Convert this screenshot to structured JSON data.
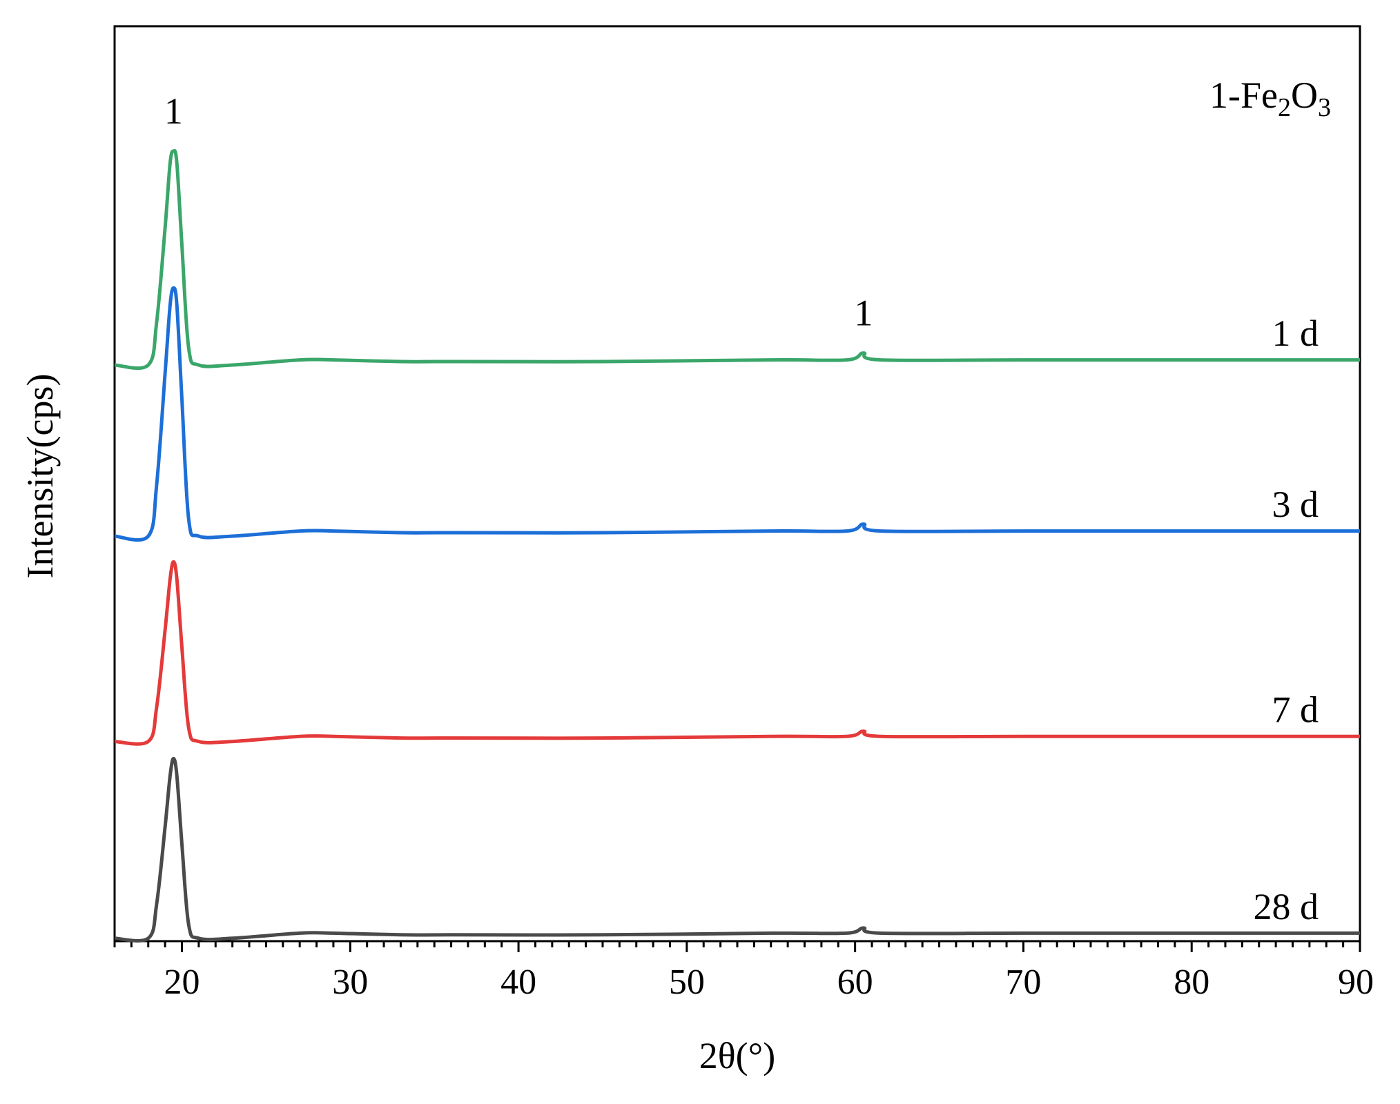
{
  "chart_data": {
    "type": "line",
    "xlabel": "2θ(°)",
    "ylabel": "Intensity(cps)",
    "xlim": [
      16,
      90
    ],
    "x_ticks": [
      20,
      30,
      40,
      50,
      60,
      70,
      80,
      90
    ],
    "x_tick_labels": [
      "20",
      "30",
      "40",
      "50",
      "60",
      "70",
      "80",
      "90"
    ],
    "y_ticks_shown": false,
    "grid": false,
    "legend": "none",
    "phase_legend": {
      "number": "1",
      "text": "-Fe",
      "sub1": "2",
      "text2": "O",
      "sub2": "3"
    },
    "peak_labels": [
      {
        "x": 19.5,
        "text": "1"
      },
      {
        "x": 60.5,
        "text": "1"
      }
    ],
    "series": [
      {
        "name": "1 d",
        "color": "#3aa66a",
        "baseline": 1.0,
        "x": [
          16,
          18,
          18.5,
          19,
          19.3,
          19.5,
          19.7,
          20.0,
          20.4,
          21,
          23,
          27,
          29,
          33,
          36,
          45,
          55,
          59.5,
          60.5,
          61.5,
          70,
          80,
          90
        ],
        "y": [
          0,
          0,
          0.25,
          0.8,
          1.18,
          1.25,
          1.18,
          0.7,
          0.1,
          0,
          0.0,
          0.03,
          0.03,
          0.02,
          0.02,
          0.02,
          0.03,
          0.03,
          0.07,
          0.03,
          0.03,
          0.03,
          0.03
        ]
      },
      {
        "name": "3 d",
        "color": "#1d6fd8",
        "baseline": 0.0,
        "x": [
          16,
          18,
          18.5,
          19,
          19.3,
          19.5,
          19.7,
          20.0,
          20.4,
          21,
          23,
          27,
          29,
          33,
          36,
          45,
          55,
          59.5,
          60.5,
          61.5,
          70,
          80,
          90
        ],
        "y": [
          0,
          0,
          0.3,
          0.95,
          1.35,
          1.45,
          1.35,
          0.8,
          0.1,
          0,
          0.0,
          0.03,
          0.03,
          0.02,
          0.02,
          0.02,
          0.03,
          0.03,
          0.07,
          0.03,
          0.03,
          0.03,
          0.03
        ]
      },
      {
        "name": "7 d",
        "color": "#e43a3a",
        "baseline": -1.2,
        "x": [
          16,
          18,
          18.5,
          19,
          19.3,
          19.5,
          19.7,
          20.0,
          20.4,
          21,
          23,
          27,
          29,
          33,
          36,
          45,
          55,
          59.5,
          60.5,
          61.5,
          70,
          80,
          90
        ],
        "y": [
          0,
          0,
          0.2,
          0.65,
          0.95,
          1.05,
          0.95,
          0.55,
          0.08,
          0,
          0.0,
          0.03,
          0.03,
          0.02,
          0.02,
          0.02,
          0.03,
          0.03,
          0.06,
          0.03,
          0.03,
          0.03,
          0.03
        ]
      },
      {
        "name": "28 d",
        "color": "#4a4a4a",
        "baseline": -2.35,
        "x": [
          16,
          18,
          18.5,
          19,
          19.3,
          19.5,
          19.7,
          20.0,
          20.4,
          21,
          23,
          27,
          29,
          33,
          36,
          45,
          55,
          59.5,
          60.5,
          61.5,
          70,
          80,
          90
        ],
        "y": [
          0,
          0,
          0.2,
          0.65,
          0.95,
          1.05,
          0.95,
          0.55,
          0.08,
          0,
          0.0,
          0.03,
          0.03,
          0.02,
          0.02,
          0.02,
          0.03,
          0.03,
          0.06,
          0.03,
          0.03,
          0.03,
          0.03
        ]
      }
    ]
  }
}
